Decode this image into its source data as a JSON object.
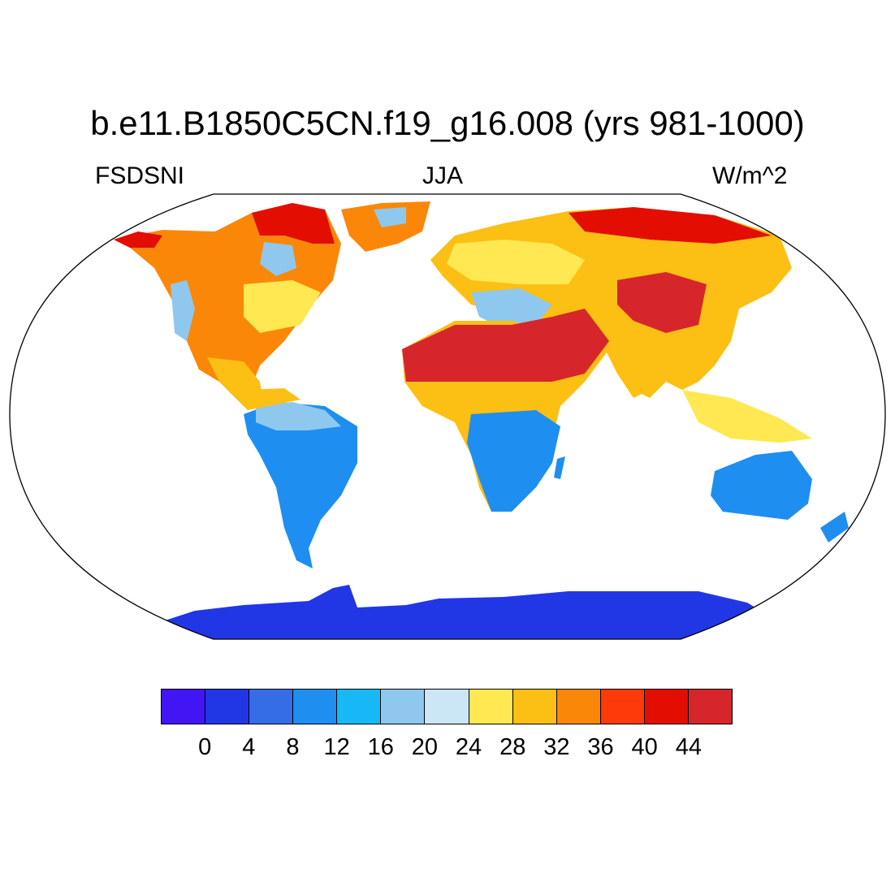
{
  "title": "b.e11.B1850C5CN.f19_g16.008 (yrs 981-1000)",
  "left_label": "FSDSNI",
  "center_label": "JJA",
  "right_label": "W/m^2",
  "colorbar": {
    "colors": [
      "#4215f5",
      "#2137e6",
      "#356de6",
      "#1e8ef0",
      "#16b9f5",
      "#8ec8ee",
      "#cbe7f6",
      "#ffe851",
      "#fcbf13",
      "#fb8708",
      "#fe3a08",
      "#e30d02",
      "#d6262b"
    ],
    "labels": [
      "0",
      "4",
      "8",
      "12",
      "16",
      "20",
      "24",
      "28",
      "32",
      "36",
      "40",
      "44"
    ]
  }
}
